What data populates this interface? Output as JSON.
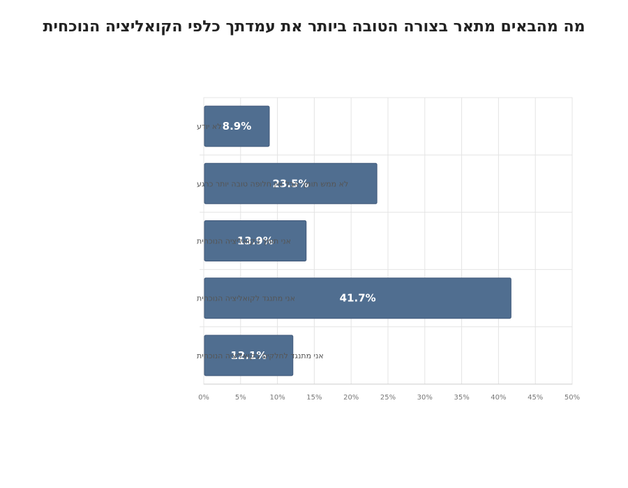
{
  "chart_data": {
    "type": "bar",
    "orientation": "horizontal",
    "title": "מה מהבאים מתאר בצורה הטובה ביותר את עמדתך כלפי הקואליציה הנוכחית",
    "categories": [
      "לא יודע",
      "לא ממש תומך אבל אין חלופה טובה יותר כרגע",
      "אני תומך בקואליציה הנוכחית",
      "אני מתנגד לקואליציה הנוכחית",
      "אני מתנגד לחלקים בקואליציה הנוכחית"
    ],
    "values": [
      8.9,
      23.5,
      13.9,
      41.7,
      12.1
    ],
    "value_labels": [
      "8.9%",
      "23.5%",
      "13.9%",
      "41.7%",
      "12.1%"
    ],
    "xlim": [
      0,
      50
    ],
    "x_ticks": [
      "0%",
      "5%",
      "10%",
      "15%",
      "20%",
      "25%",
      "30%",
      "35%",
      "40%",
      "45%",
      "50%"
    ],
    "grid": true,
    "bar_color": "#506e90",
    "xlabel": "",
    "ylabel": ""
  }
}
